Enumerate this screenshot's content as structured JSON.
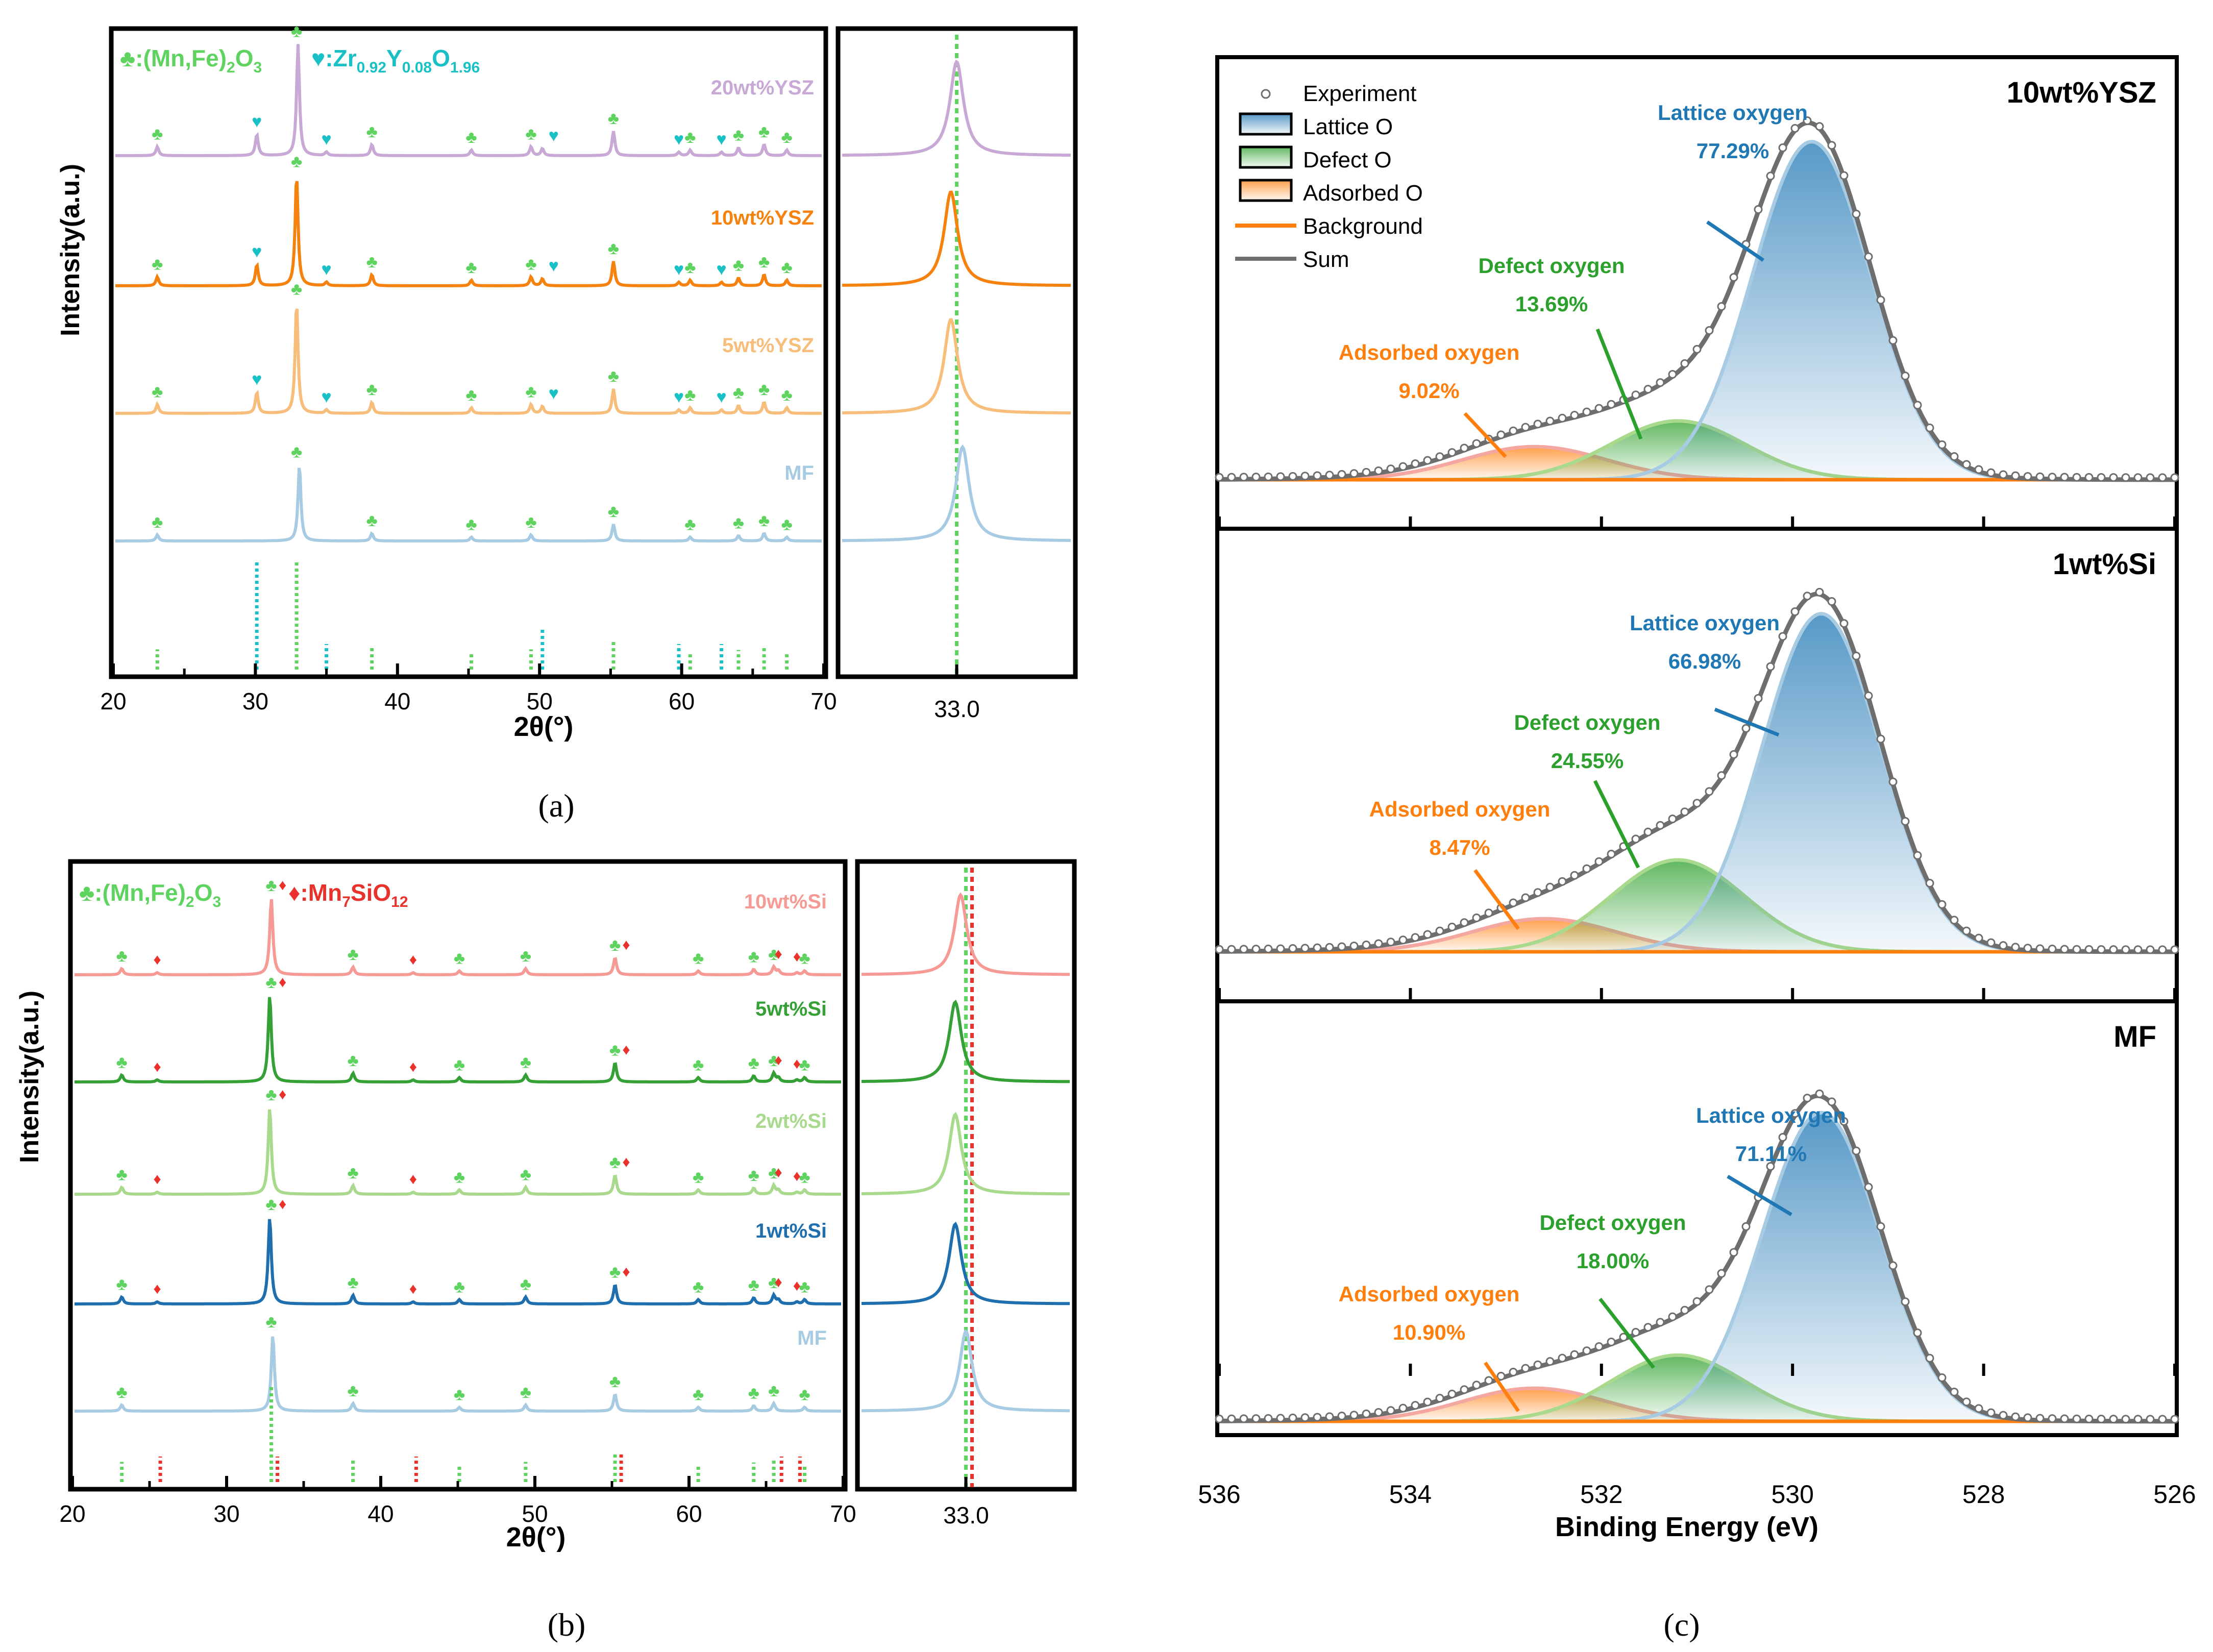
{
  "figure": {
    "caption_a": "(a)",
    "caption_b": "(b)",
    "caption_c": "(c)"
  },
  "colors": {
    "mnfe": "#5fd35f",
    "ysz": "#19c1c6",
    "si": "#e8322b",
    "wt20ysz": "#c8a9d6",
    "wt10ysz": "#f5820f",
    "wt5ysz": "#f7bd7a",
    "mf": "#a7cbe3",
    "wt10si": "#f59a94",
    "wt5si": "#35a035",
    "wt2si": "#a8d98c",
    "wt1si": "#1f6fae",
    "lattice": "#1f77b4",
    "defect": "#2ca02c",
    "adsorbed": "#ff7f0e",
    "sum": "#6e6e6e"
  },
  "chart_data": [
    {
      "id": "a",
      "type": "line",
      "title": "",
      "xlabel": "2θ(°)",
      "ylabel": "Intensity(a.u.)",
      "xlim": [
        20,
        70
      ],
      "xticks": [
        "20",
        "30",
        "40",
        "50",
        "60",
        "70"
      ],
      "legend": {
        "phase1": "♣:(Mn,Fe)2O3",
        "phase2": "♥:Zr0.92Y0.08O1.96"
      },
      "zoom": {
        "center": 33.0,
        "tick": "33.0",
        "range": [
          31.0,
          35.0
        ]
      },
      "series": [
        {
          "name": "20wt%YSZ",
          "color": "wt20ysz",
          "ysz": true,
          "mainPeak": 33.0,
          "amp": 0.95
        },
        {
          "name": "10wt%YSZ",
          "color": "wt10ysz",
          "ysz": true,
          "mainPeak": 32.9,
          "amp": 0.95
        },
        {
          "name": "5wt%YSZ",
          "color": "wt5ysz",
          "ysz": true,
          "mainPeak": 32.9,
          "amp": 0.95
        },
        {
          "name": "MF",
          "color": "mf",
          "ysz": false,
          "mainPeak": 33.1,
          "amp": 0.65
        }
      ],
      "peaks_mnfe": [
        23.1,
        32.9,
        38.2,
        45.2,
        49.4,
        55.2,
        60.6,
        64.0,
        65.8,
        67.4
      ],
      "peaks_ysz": [
        30.1,
        35.0,
        50.2,
        59.8,
        62.8
      ]
    },
    {
      "id": "b",
      "type": "line",
      "title": "",
      "xlabel": "2θ(°)",
      "ylabel": "Intensity(a.u.)",
      "xlim": [
        20,
        70
      ],
      "xticks": [
        "20",
        "30",
        "40",
        "50",
        "60",
        "70"
      ],
      "legend": {
        "phase1": "♣:(Mn,Fe)2O3",
        "phase2": "♦:Mn7SiO12"
      },
      "zoom": {
        "center": 33.0,
        "tick": "33.0",
        "range": [
          31.0,
          35.0
        ]
      },
      "series": [
        {
          "name": "10wt%Si",
          "color": "wt10si",
          "si": true,
          "mainPeak": 32.9,
          "amp": 0.75
        },
        {
          "name": "5wt%Si",
          "color": "wt5si",
          "si": true,
          "mainPeak": 32.8,
          "amp": 0.85
        },
        {
          "name": "2wt%Si",
          "color": "wt2si",
          "si": true,
          "mainPeak": 32.8,
          "amp": 0.85
        },
        {
          "name": "1wt%Si",
          "color": "wt1si",
          "si": true,
          "mainPeak": 32.8,
          "amp": 0.85
        },
        {
          "name": "MF",
          "color": "mf",
          "si": false,
          "mainPeak": 33.0,
          "amp": 0.75
        }
      ],
      "peaks_mnfe": [
        23.2,
        32.9,
        38.2,
        45.1,
        49.4,
        55.2,
        60.6,
        64.2,
        65.5,
        67.5
      ],
      "peaks_si": [
        25.5,
        33.1,
        42.1,
        55.4,
        65.8,
        67.0
      ]
    },
    {
      "id": "c",
      "type": "area",
      "xlabel": "Binding Energy (eV)",
      "xlim": [
        536,
        526
      ],
      "xticks": [
        "536",
        "534",
        "532",
        "530",
        "528",
        "526"
      ],
      "legend": [
        "Experiment",
        "Lattice O",
        "Defect O",
        "Adsorbed O",
        "Background",
        "Sum"
      ],
      "panels": [
        {
          "sample": "10wt%YSZ",
          "lattice": {
            "center": 529.8,
            "amp": 0.92,
            "pct": "77.29%"
          },
          "defect": {
            "center": 531.2,
            "amp": 0.16,
            "pct": "13.69%"
          },
          "adsorbed": {
            "center": 532.7,
            "amp": 0.09,
            "pct": "9.02%"
          }
        },
        {
          "sample": "1wt%Si",
          "lattice": {
            "center": 529.7,
            "amp": 0.92,
            "pct": "66.98%"
          },
          "defect": {
            "center": 531.2,
            "amp": 0.25,
            "pct": "24.55%"
          },
          "adsorbed": {
            "center": 532.6,
            "amp": 0.09,
            "pct": "8.47%"
          }
        },
        {
          "sample": "MF",
          "lattice": {
            "center": 529.7,
            "amp": 0.84,
            "pct": "71.11%"
          },
          "defect": {
            "center": 531.2,
            "amp": 0.18,
            "pct": "18.00%"
          },
          "adsorbed": {
            "center": 532.7,
            "amp": 0.09,
            "pct": "10.90%"
          }
        }
      ],
      "labels": {
        "lattice": "Lattice oxygen",
        "defect": "Defect oxygen",
        "adsorbed": "Adsorbed oxygen"
      }
    }
  ]
}
